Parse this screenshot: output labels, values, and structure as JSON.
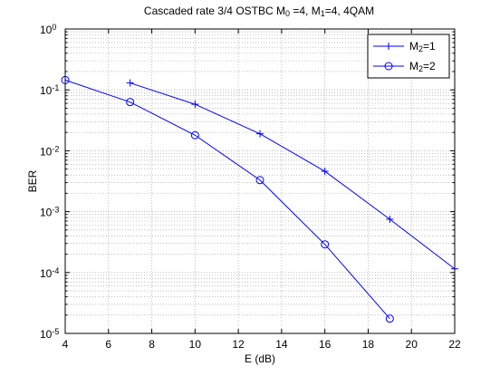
{
  "chart_data": {
    "type": "line",
    "title_parts": [
      {
        "text": "Cascaded rate 3/4 OSTBC M"
      },
      {
        "text": "0",
        "sub": true
      },
      {
        "text": " =4, M"
      },
      {
        "text": "1",
        "sub": true
      },
      {
        "text": "=4, 4QAM"
      }
    ],
    "xlabel": "E (dB)",
    "ylabel": "BER",
    "x_scale": "linear",
    "y_scale": "log",
    "xlim": [
      4,
      22
    ],
    "ylim": [
      1e-05,
      1
    ],
    "x_ticks": [
      4,
      6,
      8,
      10,
      12,
      14,
      16,
      18,
      20,
      22
    ],
    "x_tick_labels": [
      "4",
      "6",
      "8",
      "10",
      "12",
      "14",
      "16",
      "18",
      "20",
      "22"
    ],
    "y_ticks": [
      {
        "value": 1e-05,
        "base": "10",
        "exp": "-5"
      },
      {
        "value": 0.0001,
        "base": "10",
        "exp": "-4"
      },
      {
        "value": 0.001,
        "base": "10",
        "exp": "-3"
      },
      {
        "value": 0.01,
        "base": "10",
        "exp": "-2"
      },
      {
        "value": 0.1,
        "base": "10",
        "exp": "-1"
      },
      {
        "value": 1,
        "base": "10",
        "exp": "0"
      }
    ],
    "grid": "on (dotted, major and minor)",
    "legend_position": "top-right",
    "series": [
      {
        "name_parts": [
          {
            "text": "M"
          },
          {
            "text": "2",
            "sub": true
          },
          {
            "text": "=1"
          }
        ],
        "marker": "plus",
        "color": "#0000ff",
        "x": [
          7,
          10,
          13,
          16,
          19,
          22
        ],
        "y": [
          0.13,
          0.058,
          0.019,
          0.0046,
          0.00075,
          0.000115
        ]
      },
      {
        "name_parts": [
          {
            "text": "M"
          },
          {
            "text": "2",
            "sub": true
          },
          {
            "text": "=2"
          }
        ],
        "marker": "circle",
        "color": "#0000ff",
        "x": [
          4,
          7,
          10,
          13,
          16,
          19
        ],
        "y": [
          0.145,
          0.063,
          0.018,
          0.0033,
          0.00029,
          1.75e-05
        ]
      }
    ]
  }
}
